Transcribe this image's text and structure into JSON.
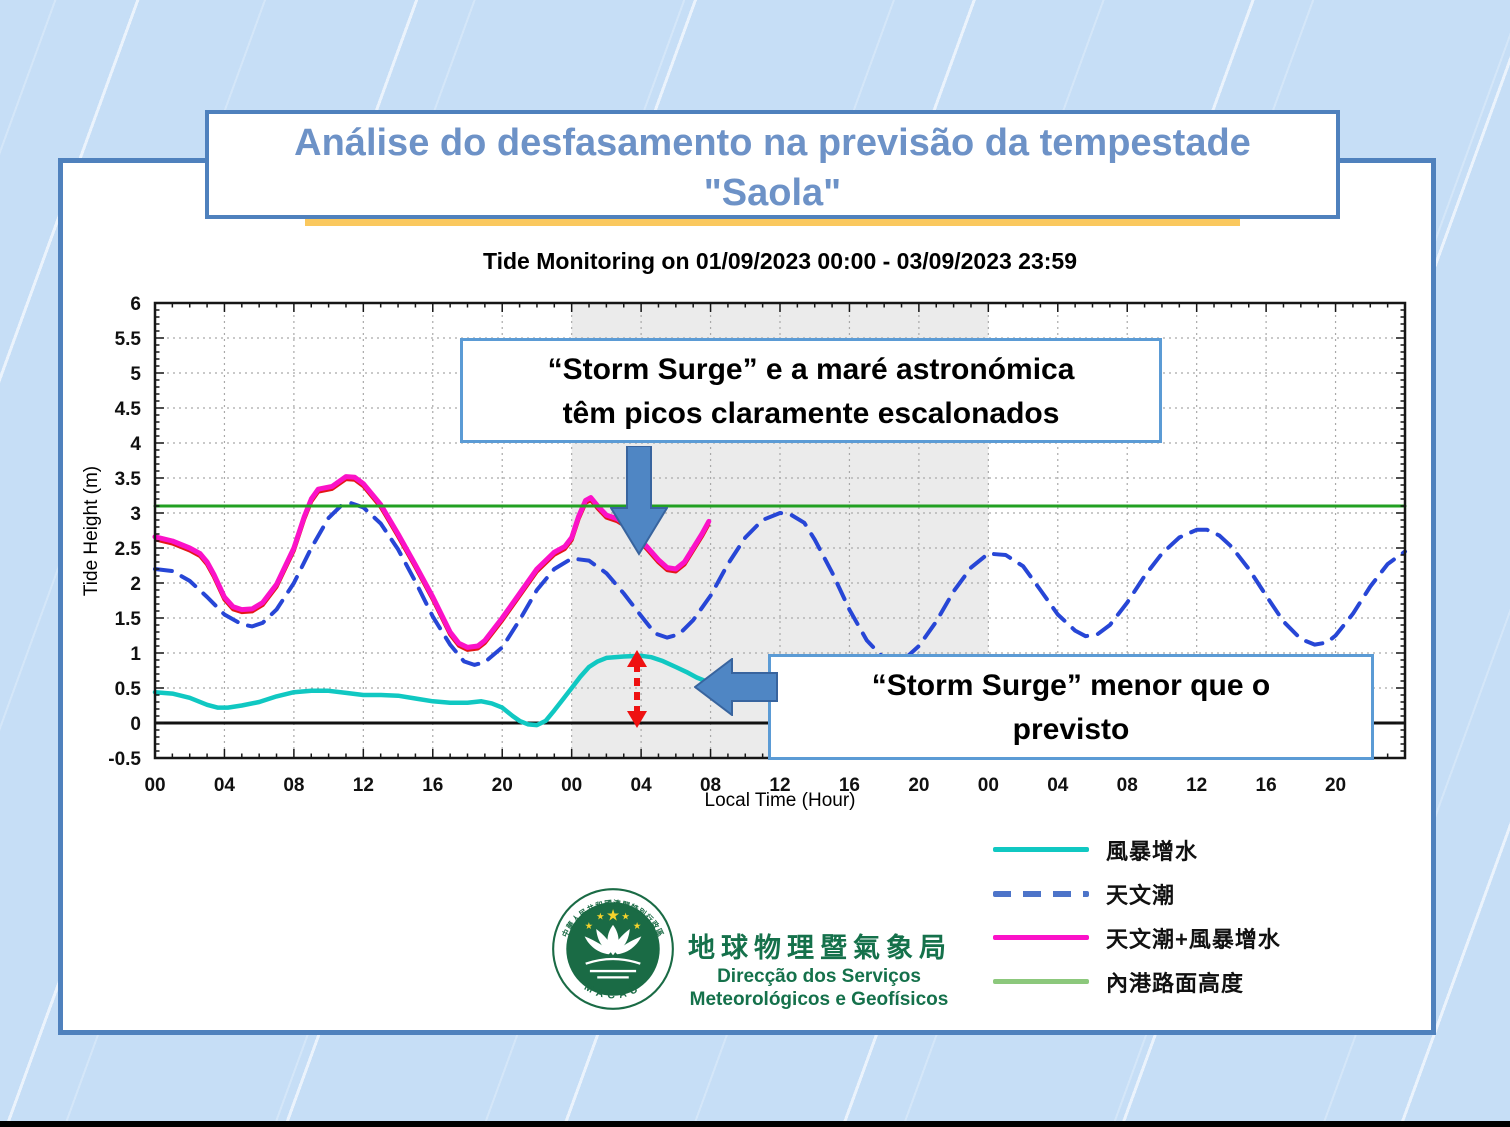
{
  "slide_title": {
    "line1": "Análise do desfasamento na previsão da tempestade",
    "line2": "\"Saola\""
  },
  "chart_data": {
    "type": "line",
    "title": "Tide Monitoring on 01/09/2023 00:00 - 03/09/2023 23:59",
    "xlabel": "Local Time (Hour)",
    "ylabel": "Tide Height (m)",
    "ylim": [
      -0.5,
      6
    ],
    "ytick_labels": [
      "6",
      "5.5",
      "5",
      "4.5",
      "4",
      "3.5",
      "3",
      "2.5",
      "2",
      "1.5",
      "1",
      "0.5",
      "0",
      "-0.5"
    ],
    "x_hours_total": 72,
    "xtick_step_hours": 4,
    "xtick_labels": [
      "00",
      "04",
      "08",
      "12",
      "16",
      "20",
      "00",
      "04",
      "08",
      "12",
      "16",
      "20",
      "00",
      "04",
      "08",
      "12",
      "16",
      "20"
    ],
    "grid": "dotted",
    "shaded_region_hours": [
      24,
      48
    ],
    "colors": {
      "band": "#ebebeb",
      "grid": "#a9a9a9",
      "frame": "#161616",
      "zero_line": "#111111"
    },
    "series": [
      {
        "name": "天文潮+風暴增水",
        "color": "#fb12c8",
        "edge_color": "#e41717",
        "style": "solid",
        "width": 5,
        "points": [
          [
            0,
            2.66
          ],
          [
            1,
            2.6
          ],
          [
            2,
            2.5
          ],
          [
            2.6,
            2.42
          ],
          [
            3,
            2.3
          ],
          [
            3.4,
            2.12
          ],
          [
            4,
            1.8
          ],
          [
            4.5,
            1.66
          ],
          [
            5,
            1.62
          ],
          [
            5.6,
            1.63
          ],
          [
            6.2,
            1.72
          ],
          [
            7,
            1.98
          ],
          [
            8,
            2.5
          ],
          [
            8.6,
            2.95
          ],
          [
            9,
            3.2
          ],
          [
            9.4,
            3.34
          ],
          [
            9.8,
            3.36
          ],
          [
            10.2,
            3.38
          ],
          [
            10.6,
            3.45
          ],
          [
            11,
            3.52
          ],
          [
            11.5,
            3.51
          ],
          [
            12,
            3.42
          ],
          [
            13,
            3.12
          ],
          [
            14,
            2.7
          ],
          [
            15,
            2.26
          ],
          [
            16,
            1.8
          ],
          [
            17,
            1.3
          ],
          [
            17.5,
            1.14
          ],
          [
            18,
            1.08
          ],
          [
            18.6,
            1.1
          ],
          [
            19,
            1.18
          ],
          [
            20,
            1.5
          ],
          [
            21,
            1.85
          ],
          [
            22,
            2.2
          ],
          [
            23,
            2.44
          ],
          [
            23.6,
            2.52
          ],
          [
            24,
            2.65
          ],
          [
            24.4,
            2.95
          ],
          [
            24.8,
            3.18
          ],
          [
            25.1,
            3.22
          ],
          [
            25.5,
            3.1
          ],
          [
            26,
            2.97
          ],
          [
            26.6,
            2.92
          ],
          [
            27.2,
            2.83
          ],
          [
            27.8,
            2.66
          ],
          [
            28.4,
            2.5
          ],
          [
            29,
            2.33
          ],
          [
            29.5,
            2.22
          ],
          [
            30,
            2.2
          ],
          [
            30.5,
            2.3
          ],
          [
            31,
            2.5
          ],
          [
            31.5,
            2.7
          ],
          [
            31.9,
            2.88
          ]
        ]
      },
      {
        "name": "天文潮",
        "color": "#2746d6",
        "style": "dashed",
        "width": 4,
        "points": [
          [
            0,
            2.2
          ],
          [
            1,
            2.17
          ],
          [
            2,
            2.03
          ],
          [
            3,
            1.8
          ],
          [
            4,
            1.55
          ],
          [
            5,
            1.41
          ],
          [
            5.6,
            1.38
          ],
          [
            6.2,
            1.43
          ],
          [
            7,
            1.62
          ],
          [
            8,
            2.0
          ],
          [
            9,
            2.5
          ],
          [
            10,
            2.93
          ],
          [
            10.7,
            3.1
          ],
          [
            11.3,
            3.14
          ],
          [
            12,
            3.08
          ],
          [
            13,
            2.85
          ],
          [
            14,
            2.48
          ],
          [
            15,
            2.02
          ],
          [
            16,
            1.52
          ],
          [
            17,
            1.12
          ],
          [
            17.8,
            0.88
          ],
          [
            18.4,
            0.83
          ],
          [
            19,
            0.87
          ],
          [
            20,
            1.08
          ],
          [
            21,
            1.47
          ],
          [
            22,
            1.9
          ],
          [
            23,
            2.2
          ],
          [
            24,
            2.35
          ],
          [
            25,
            2.32
          ],
          [
            26,
            2.14
          ],
          [
            27,
            1.85
          ],
          [
            28,
            1.53
          ],
          [
            28.8,
            1.28
          ],
          [
            29.5,
            1.22
          ],
          [
            30.2,
            1.27
          ],
          [
            31,
            1.47
          ],
          [
            32,
            1.82
          ],
          [
            33,
            2.27
          ],
          [
            34,
            2.65
          ],
          [
            35,
            2.9
          ],
          [
            36,
            3.0
          ],
          [
            36.6,
            2.98
          ],
          [
            37.4,
            2.86
          ],
          [
            38,
            2.62
          ],
          [
            39,
            2.15
          ],
          [
            40,
            1.62
          ],
          [
            41,
            1.18
          ],
          [
            42,
            0.92
          ],
          [
            42.6,
            0.87
          ],
          [
            43.2,
            0.92
          ],
          [
            44,
            1.1
          ],
          [
            45,
            1.45
          ],
          [
            46,
            1.88
          ],
          [
            47,
            2.22
          ],
          [
            48,
            2.42
          ],
          [
            49,
            2.4
          ],
          [
            50,
            2.24
          ],
          [
            51,
            1.9
          ],
          [
            52,
            1.55
          ],
          [
            53,
            1.32
          ],
          [
            53.6,
            1.24
          ],
          [
            54.3,
            1.27
          ],
          [
            55,
            1.4
          ],
          [
            56,
            1.72
          ],
          [
            57,
            2.1
          ],
          [
            58,
            2.42
          ],
          [
            59,
            2.65
          ],
          [
            60,
            2.76
          ],
          [
            60.6,
            2.76
          ],
          [
            61.3,
            2.68
          ],
          [
            62,
            2.52
          ],
          [
            63,
            2.2
          ],
          [
            64,
            1.82
          ],
          [
            65,
            1.45
          ],
          [
            66,
            1.2
          ],
          [
            66.8,
            1.12
          ],
          [
            67.5,
            1.15
          ],
          [
            68,
            1.25
          ],
          [
            69,
            1.56
          ],
          [
            70,
            1.95
          ],
          [
            71,
            2.27
          ],
          [
            72,
            2.45
          ]
        ]
      },
      {
        "name": "風暴增水",
        "color": "#10c8c2",
        "style": "solid",
        "width": 4.5,
        "points": [
          [
            0,
            0.44
          ],
          [
            1,
            0.42
          ],
          [
            2,
            0.36
          ],
          [
            3,
            0.26
          ],
          [
            3.6,
            0.22
          ],
          [
            4.2,
            0.22
          ],
          [
            5,
            0.25
          ],
          [
            6,
            0.3
          ],
          [
            7,
            0.38
          ],
          [
            8,
            0.44
          ],
          [
            9,
            0.46
          ],
          [
            10,
            0.46
          ],
          [
            11,
            0.43
          ],
          [
            12,
            0.4
          ],
          [
            13,
            0.4
          ],
          [
            14,
            0.39
          ],
          [
            15,
            0.35
          ],
          [
            16,
            0.31
          ],
          [
            17,
            0.29
          ],
          [
            18,
            0.29
          ],
          [
            18.8,
            0.31
          ],
          [
            19.4,
            0.28
          ],
          [
            20,
            0.22
          ],
          [
            20.6,
            0.1
          ],
          [
            21,
            0.03
          ],
          [
            21.5,
            -0.02
          ],
          [
            22,
            -0.03
          ],
          [
            22.5,
            0.03
          ],
          [
            23,
            0.18
          ],
          [
            23.5,
            0.34
          ],
          [
            24,
            0.5
          ],
          [
            24.5,
            0.66
          ],
          [
            25,
            0.8
          ],
          [
            25.5,
            0.88
          ],
          [
            26,
            0.93
          ],
          [
            27,
            0.95
          ],
          [
            28,
            0.96
          ],
          [
            28.6,
            0.94
          ],
          [
            29.2,
            0.89
          ],
          [
            30,
            0.8
          ],
          [
            30.6,
            0.73
          ],
          [
            31.2,
            0.65
          ],
          [
            31.8,
            0.59
          ],
          [
            32.5,
            0.55
          ]
        ]
      },
      {
        "name": "內港路面高度",
        "color": "#22a022",
        "style": "solid",
        "width": 3,
        "points": [
          [
            0,
            3.1
          ],
          [
            72,
            3.1
          ]
        ]
      }
    ]
  },
  "annotations": {
    "box1": {
      "line1": "“Storm Surge”  e a maré astronómica",
      "line2": "têm picos claramente escalonados"
    },
    "box2": {
      "line1": "“Storm Surge”  menor que o",
      "line2": "previsto"
    },
    "border_color": "#5b9bd5",
    "arrow_fill": "#4f86c4",
    "arrow_stroke": "#38649e",
    "red_arrow_color": "#ee1111"
  },
  "legend": {
    "items": [
      {
        "label": "風暴增水",
        "color": "#10c8c2",
        "dash": false
      },
      {
        "label": "天文潮",
        "color": "#4d74c9",
        "dash": true
      },
      {
        "label": "天文潮+風暴增水",
        "color": "#fb12c8",
        "dash": false
      },
      {
        "label": "內港路面高度",
        "color": "#8cc87c",
        "dash": false
      }
    ]
  },
  "footer": {
    "cjk_title": "地球物理暨氣象局",
    "subtitle1": "Direcção dos Serviços",
    "subtitle2": "Meteorológicos e Geofísicos",
    "seal_top": "中華人民共和國澳門特別行政區",
    "seal_bottom": "MACAU",
    "logo_green": "#1a6b45",
    "star_gold": "#f5d32c"
  }
}
